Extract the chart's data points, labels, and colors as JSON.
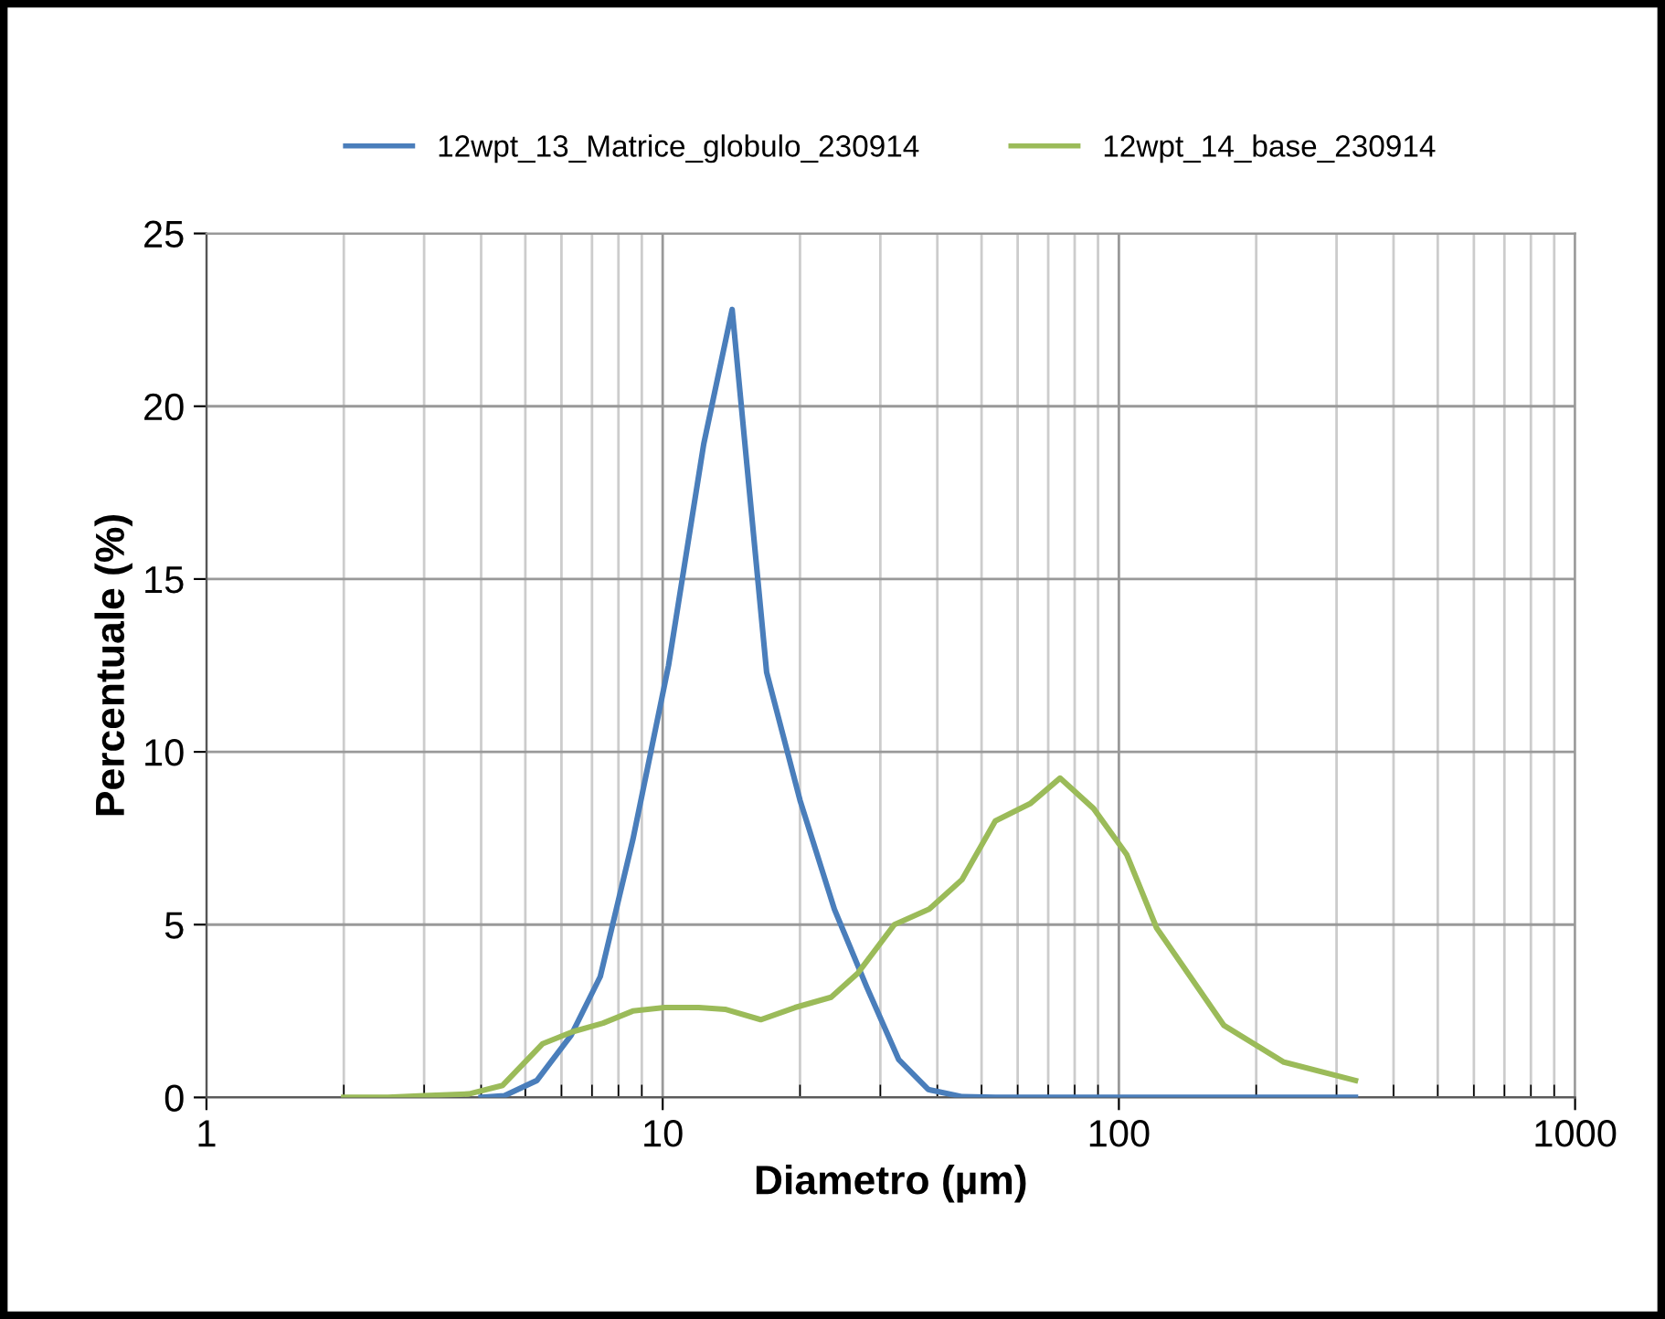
{
  "chart_data": {
    "type": "line",
    "xlabel": "Diametro (µm)",
    "ylabel": "Percentuale (%)",
    "log": "x",
    "xlim": [
      1,
      1000
    ],
    "xticks": [
      1,
      10,
      100,
      1000
    ],
    "ylim": [
      0,
      25
    ],
    "yticks": [
      0,
      5,
      10,
      15,
      20,
      25
    ],
    "grid": true,
    "legend": "top",
    "marker": "none",
    "line_style": "solid",
    "series": [
      {
        "name": "12wpt_13_Matrice_globulo_230914",
        "color": "#4a7ebb",
        "x": [
          4.0,
          4.5,
          5.3,
          6.3,
          7.3,
          8.6,
          10.3,
          12.3,
          14.2,
          16.9,
          20,
          23.8,
          28,
          32.9,
          38.2,
          45.4,
          53.6,
          63.9,
          88,
          121,
          170,
          230,
          330
        ],
        "values": [
          0,
          0.05,
          0.49,
          1.8,
          3.5,
          7.45,
          12.5,
          18.9,
          22.8,
          12.3,
          8.6,
          5.44,
          3.2,
          1.1,
          0.23,
          0.02,
          0,
          0,
          0,
          0,
          0,
          0,
          0
        ]
      },
      {
        "name": "12wpt_14_base_230914",
        "color": "#9bbb59",
        "x": [
          2.0,
          2.5,
          3.0,
          3.76,
          4.46,
          5.45,
          6.35,
          7.4,
          8.6,
          10.1,
          12,
          13.7,
          16.4,
          19.5,
          23.4,
          26.8,
          32.2,
          38.4,
          45.3,
          53.6,
          63.9,
          74.3,
          88,
          104,
          121,
          145,
          170,
          230,
          330
        ],
        "values": [
          0,
          0,
          0.05,
          0.1,
          0.35,
          1.55,
          1.9,
          2.15,
          2.5,
          2.6,
          2.6,
          2.55,
          2.25,
          2.6,
          2.9,
          3.6,
          5.0,
          5.45,
          6.3,
          8.0,
          8.5,
          9.24,
          8.36,
          7.03,
          4.9,
          3.4,
          2.08,
          1.02,
          0.49
        ]
      }
    ]
  }
}
